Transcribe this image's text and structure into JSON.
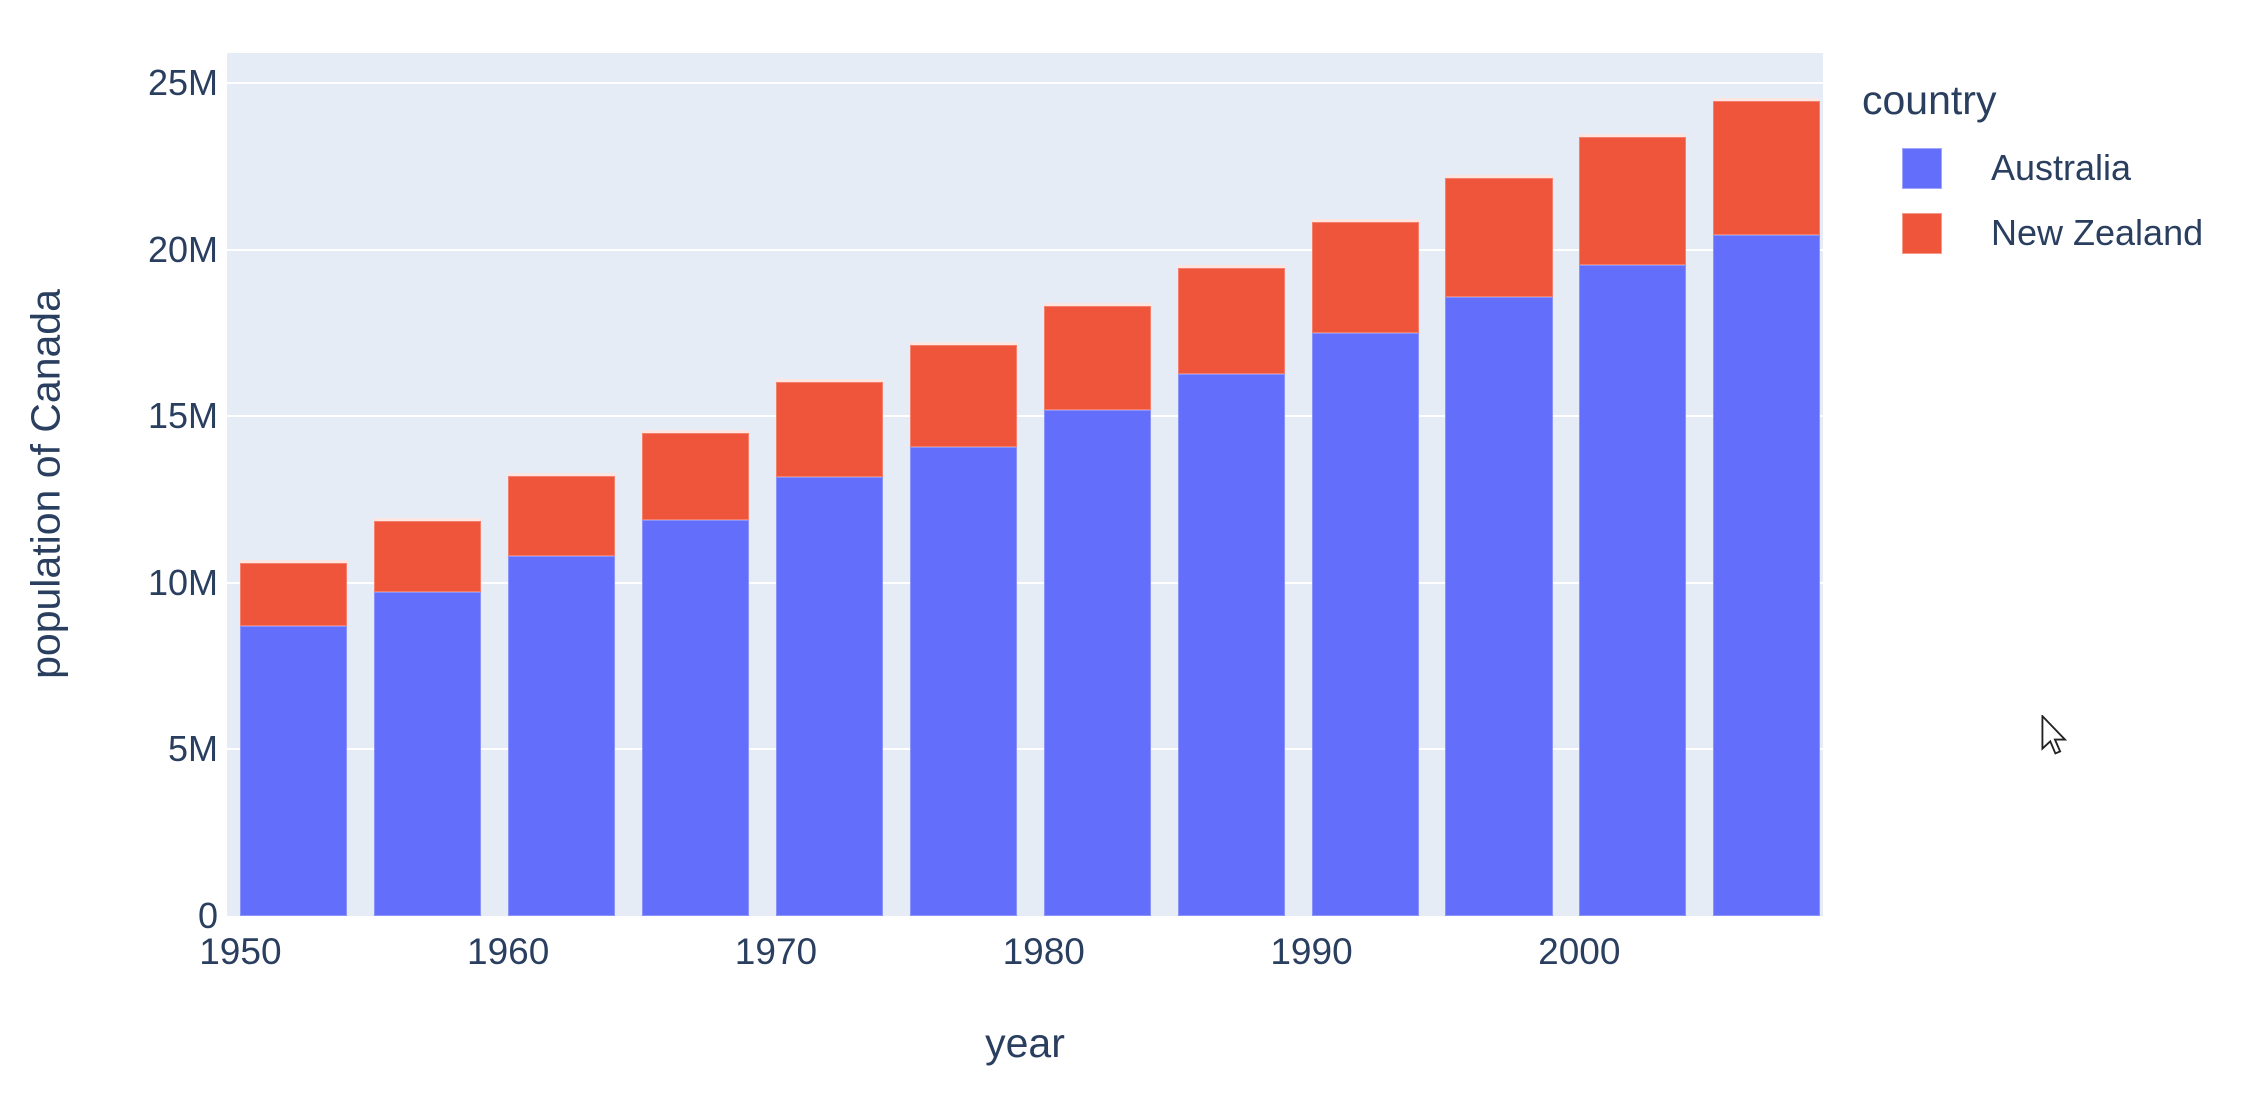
{
  "figure": {
    "background": "#ffffff",
    "plot_background": "#E5ECF6",
    "grid_color": "#ffffff",
    "text_color": "#2a3f5f"
  },
  "chart_data": {
    "type": "bar",
    "stacked": true,
    "title": "",
    "xlabel": "year",
    "ylabel": "population of Canada",
    "legend_title": "country",
    "legend_position": "right",
    "grid": "horizontal-only",
    "x": [
      1952,
      1957,
      1962,
      1967,
      1972,
      1977,
      1982,
      1987,
      1992,
      1997,
      2002,
      2007
    ],
    "series": [
      {
        "name": "Australia",
        "color": "#636EFA",
        "values": [
          8691212,
          9712569,
          10794968,
          11872264,
          13177000,
          14074100,
          15184200,
          16257249,
          17481977,
          18565243,
          19546792,
          20434176
        ]
      },
      {
        "name": "New Zealand",
        "color": "#EF553B",
        "values": [
          1994794,
          2229407,
          2488550,
          2728150,
          2929100,
          3164900,
          3210650,
          3266478,
          3437674,
          3676187,
          3908037,
          4115771
        ]
      }
    ],
    "xticks": {
      "values": [
        1950,
        1960,
        1970,
        1980,
        1990,
        2000
      ],
      "labels": [
        "1950",
        "1960",
        "1970",
        "1980",
        "1990",
        "2000"
      ]
    },
    "yticks": {
      "values": [
        0,
        5000000,
        10000000,
        15000000,
        20000000,
        25000000
      ],
      "labels": [
        "0",
        "5M",
        "10M",
        "15M",
        "20M",
        "25M"
      ]
    },
    "xlim": [
      1949.5,
      2009.1
    ],
    "ylim": [
      0,
      25900000
    ],
    "bar_width_x": 4
  }
}
